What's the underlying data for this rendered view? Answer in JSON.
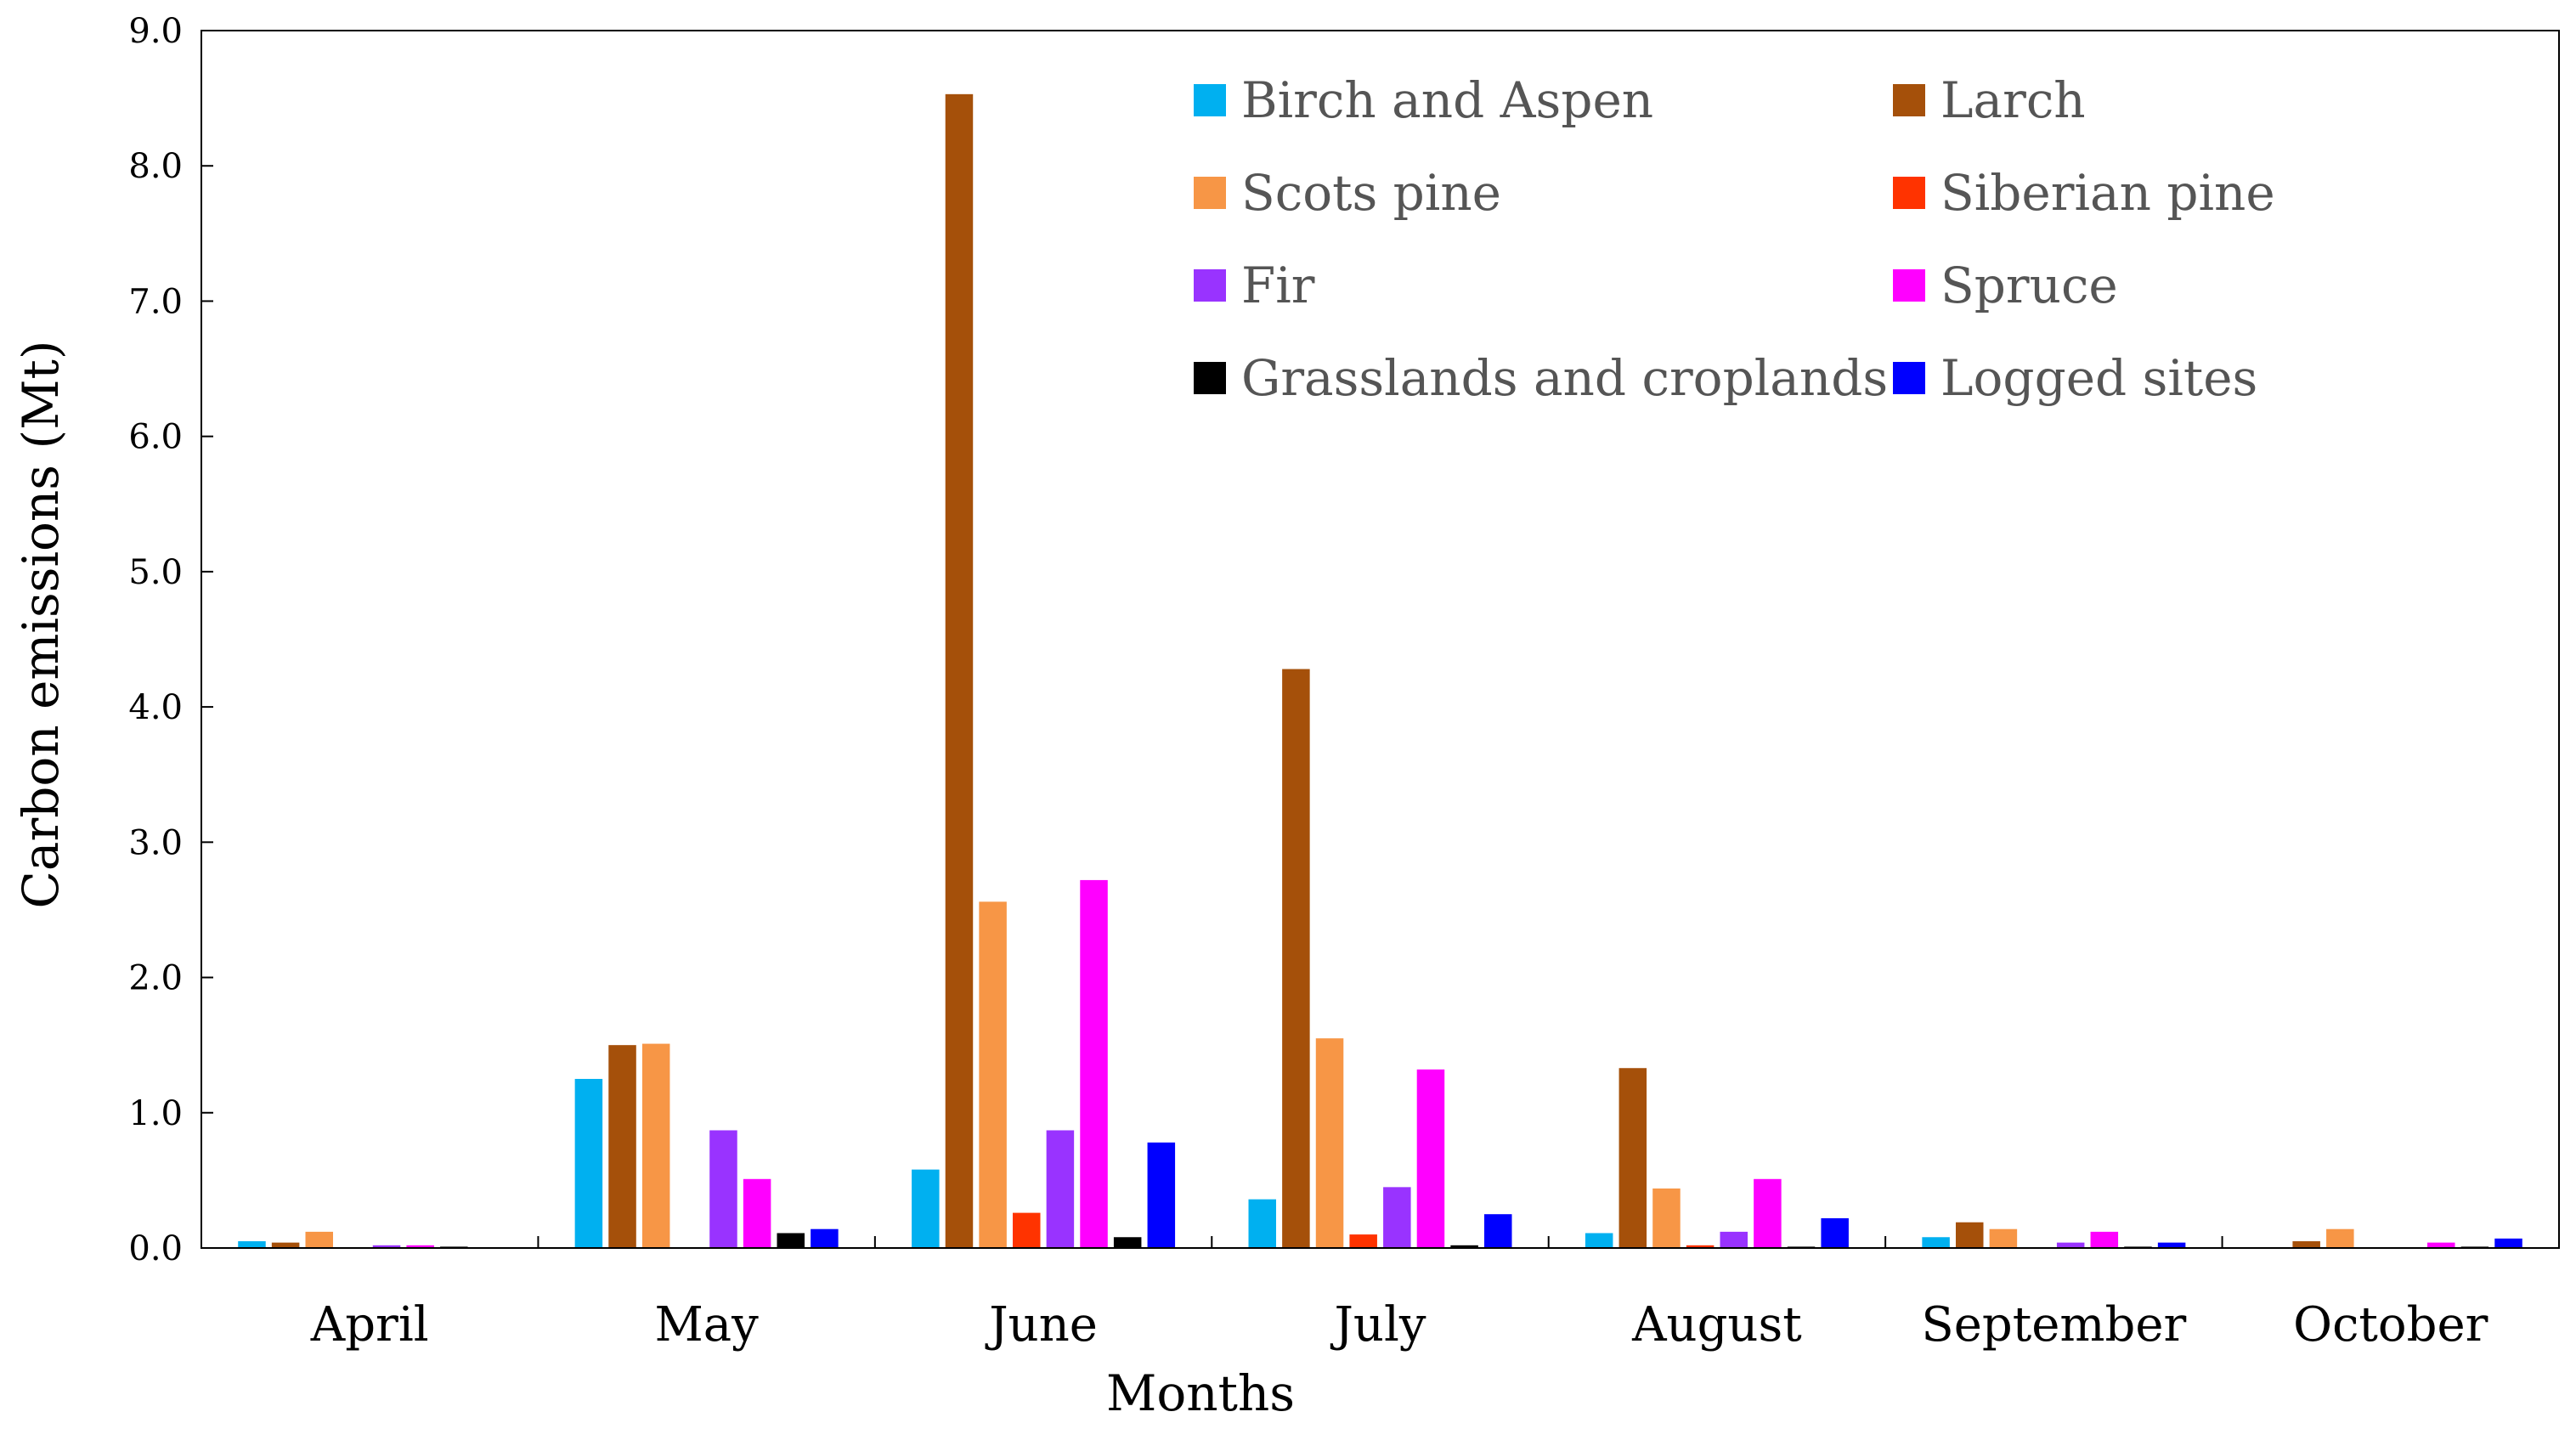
{
  "chart_data": {
    "type": "bar",
    "title": "",
    "xlabel": "Months",
    "ylabel": "Carbon emissions (Mt)",
    "ylim": [
      0,
      9
    ],
    "yticks": [
      "0.0",
      "1.0",
      "2.0",
      "3.0",
      "4.0",
      "5.0",
      "6.0",
      "7.0",
      "8.0",
      "9.0"
    ],
    "grid": false,
    "legend_position": "top-right",
    "categories": [
      "April",
      "May",
      "June",
      "July",
      "August",
      "September",
      "October"
    ],
    "series": [
      {
        "name": "Birch and Aspen",
        "color": "#00b0f0",
        "values": [
          0.05,
          1.25,
          0.58,
          0.36,
          0.11,
          0.08,
          0.0
        ]
      },
      {
        "name": "Larch",
        "color": "#a5500a",
        "values": [
          0.04,
          1.5,
          8.53,
          4.28,
          1.33,
          0.19,
          0.05
        ]
      },
      {
        "name": "Scots pine",
        "color": "#f79646",
        "values": [
          0.12,
          1.51,
          2.56,
          1.55,
          0.44,
          0.14,
          0.14
        ]
      },
      {
        "name": "Siberian pine",
        "color": "#ff3300",
        "values": [
          0.0,
          0.0,
          0.26,
          0.1,
          0.02,
          0.0,
          0.0
        ]
      },
      {
        "name": "Fir",
        "color": "#9933ff",
        "values": [
          0.02,
          0.87,
          0.87,
          0.45,
          0.12,
          0.04,
          0.0
        ]
      },
      {
        "name": "Spruce",
        "color": "#ff00ff",
        "values": [
          0.02,
          0.51,
          2.72,
          1.32,
          0.51,
          0.12,
          0.04
        ]
      },
      {
        "name": "Grasslands and croplands",
        "color": "#000000",
        "values": [
          0.01,
          0.11,
          0.08,
          0.02,
          0.01,
          0.01,
          0.01
        ]
      },
      {
        "name": "Logged sites",
        "color": "#0000ff",
        "values": [
          0.0,
          0.14,
          0.78,
          0.25,
          0.22,
          0.04,
          0.07
        ]
      }
    ]
  }
}
